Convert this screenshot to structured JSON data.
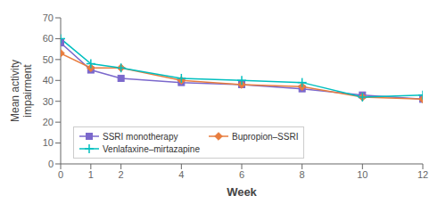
{
  "chart_data": {
    "type": "line",
    "x": [
      0,
      1,
      2,
      4,
      6,
      8,
      10,
      12
    ],
    "series": [
      {
        "name": "SSRI monotherapy",
        "color": "#7B68CC",
        "marker": "square",
        "values": [
          58,
          45,
          41,
          39,
          38,
          36,
          33,
          31
        ]
      },
      {
        "name": "Bupropion–SSRI",
        "color": "#E87D3E",
        "marker": "diamond",
        "values": [
          53,
          46,
          46,
          40,
          38,
          37,
          32,
          31
        ]
      },
      {
        "name": "Venlafaxine–mirtazapine",
        "color": "#00BFBF",
        "marker": "plus",
        "values": [
          60,
          48,
          46,
          41,
          40,
          39,
          32,
          33
        ]
      }
    ],
    "x_label": "Week",
    "y_label": "Mean activity\nimpairment",
    "xlim": [
      0,
      12
    ],
    "xticks": [
      0,
      1,
      2,
      4,
      6,
      8,
      10,
      12
    ],
    "ylim": [
      0,
      70
    ],
    "yticks": [
      0,
      10,
      20,
      30,
      40,
      50,
      60,
      70
    ],
    "legend": "lower left",
    "grid": false
  }
}
